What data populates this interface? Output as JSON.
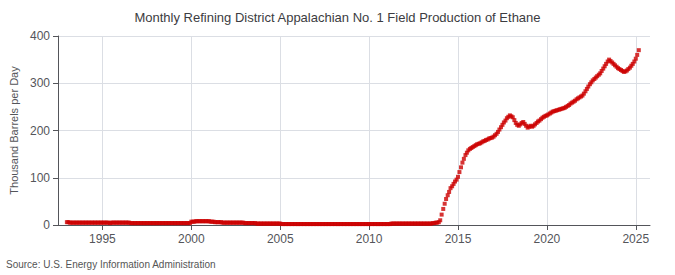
{
  "chart_data": {
    "type": "scatter",
    "title": "Monthly Refining District Appalachian No. 1 Field Production of Ethane",
    "ylabel": "Thousand Barrels per Day",
    "annotation": "Source: U.S. Energy Information Administration",
    "color": "#cc0000",
    "marker": "square",
    "grid": true,
    "xlim": [
      1992.5,
      2025.8
    ],
    "xticks": [
      1995,
      2000,
      2005,
      2010,
      2015,
      2020,
      2025
    ],
    "ylim": [
      0,
      400
    ],
    "yticks": [
      0,
      100,
      200,
      300,
      400
    ],
    "x": [
      1993.0,
      1993.08,
      1993.17,
      1993.25,
      1993.33,
      1993.42,
      1993.5,
      1993.58,
      1993.67,
      1993.75,
      1993.83,
      1993.92,
      1994.0,
      1994.08,
      1994.17,
      1994.25,
      1994.33,
      1994.42,
      1994.5,
      1994.58,
      1994.67,
      1994.75,
      1994.83,
      1994.92,
      1995.0,
      1995.08,
      1995.17,
      1995.25,
      1995.33,
      1995.42,
      1995.5,
      1995.58,
      1995.67,
      1995.75,
      1995.83,
      1995.92,
      1996.0,
      1996.08,
      1996.17,
      1996.25,
      1996.33,
      1996.42,
      1996.5,
      1996.58,
      1996.67,
      1996.75,
      1996.83,
      1996.92,
      1997.0,
      1997.08,
      1997.17,
      1997.25,
      1997.33,
      1997.42,
      1997.5,
      1997.58,
      1997.67,
      1997.75,
      1997.83,
      1997.92,
      1998.0,
      1998.08,
      1998.17,
      1998.25,
      1998.33,
      1998.42,
      1998.5,
      1998.58,
      1998.67,
      1998.75,
      1998.83,
      1998.92,
      1999.0,
      1999.08,
      1999.17,
      1999.25,
      1999.33,
      1999.42,
      1999.5,
      1999.58,
      1999.67,
      1999.75,
      1999.83,
      1999.92,
      2000.0,
      2000.08,
      2000.17,
      2000.25,
      2000.33,
      2000.42,
      2000.5,
      2000.58,
      2000.67,
      2000.75,
      2000.83,
      2000.92,
      2001.0,
      2001.08,
      2001.17,
      2001.25,
      2001.33,
      2001.42,
      2001.5,
      2001.58,
      2001.67,
      2001.75,
      2001.83,
      2001.92,
      2002.0,
      2002.08,
      2002.17,
      2002.25,
      2002.33,
      2002.42,
      2002.5,
      2002.58,
      2002.67,
      2002.75,
      2002.83,
      2002.92,
      2003.0,
      2003.08,
      2003.17,
      2003.25,
      2003.33,
      2003.42,
      2003.5,
      2003.58,
      2003.67,
      2003.75,
      2003.83,
      2003.92,
      2004.0,
      2004.08,
      2004.17,
      2004.25,
      2004.33,
      2004.42,
      2004.5,
      2004.58,
      2004.67,
      2004.75,
      2004.83,
      2004.92,
      2005.0,
      2005.08,
      2005.17,
      2005.25,
      2005.33,
      2005.42,
      2005.5,
      2005.58,
      2005.67,
      2005.75,
      2005.83,
      2005.92,
      2006.0,
      2006.08,
      2006.17,
      2006.25,
      2006.33,
      2006.42,
      2006.5,
      2006.58,
      2006.67,
      2006.75,
      2006.83,
      2006.92,
      2007.0,
      2007.08,
      2007.17,
      2007.25,
      2007.33,
      2007.42,
      2007.5,
      2007.58,
      2007.67,
      2007.75,
      2007.83,
      2007.92,
      2008.0,
      2008.08,
      2008.17,
      2008.25,
      2008.33,
      2008.42,
      2008.5,
      2008.58,
      2008.67,
      2008.75,
      2008.83,
      2008.92,
      2009.0,
      2009.08,
      2009.17,
      2009.25,
      2009.33,
      2009.42,
      2009.5,
      2009.58,
      2009.67,
      2009.75,
      2009.83,
      2009.92,
      2010.0,
      2010.08,
      2010.17,
      2010.25,
      2010.33,
      2010.42,
      2010.5,
      2010.58,
      2010.67,
      2010.75,
      2010.83,
      2010.92,
      2011.0,
      2011.08,
      2011.17,
      2011.25,
      2011.33,
      2011.42,
      2011.5,
      2011.58,
      2011.67,
      2011.75,
      2011.83,
      2011.92,
      2012.0,
      2012.08,
      2012.17,
      2012.25,
      2012.33,
      2012.42,
      2012.5,
      2012.58,
      2012.67,
      2012.75,
      2012.83,
      2012.92,
      2013.0,
      2013.08,
      2013.17,
      2013.25,
      2013.33,
      2013.42,
      2013.5,
      2013.58,
      2013.67,
      2013.75,
      2013.83,
      2013.92,
      2014.0,
      2014.08,
      2014.17,
      2014.25,
      2014.33,
      2014.42,
      2014.5,
      2014.58,
      2014.67,
      2014.75,
      2014.83,
      2014.92,
      2015.0,
      2015.08,
      2015.17,
      2015.25,
      2015.33,
      2015.42,
      2015.5,
      2015.58,
      2015.67,
      2015.75,
      2015.83,
      2015.92,
      2016.0,
      2016.08,
      2016.17,
      2016.25,
      2016.33,
      2016.42,
      2016.5,
      2016.58,
      2016.67,
      2016.75,
      2016.83,
      2016.92,
      2017.0,
      2017.08,
      2017.17,
      2017.25,
      2017.33,
      2017.42,
      2017.5,
      2017.58,
      2017.67,
      2017.75,
      2017.83,
      2017.92,
      2018.0,
      2018.08,
      2018.17,
      2018.25,
      2018.33,
      2018.42,
      2018.5,
      2018.58,
      2018.67,
      2018.75,
      2018.83,
      2018.92,
      2019.0,
      2019.08,
      2019.17,
      2019.25,
      2019.33,
      2019.42,
      2019.5,
      2019.58,
      2019.67,
      2019.75,
      2019.83,
      2019.92,
      2020.0,
      2020.08,
      2020.17,
      2020.25,
      2020.33,
      2020.42,
      2020.5,
      2020.58,
      2020.67,
      2020.75,
      2020.83,
      2020.92,
      2021.0,
      2021.08,
      2021.17,
      2021.25,
      2021.33,
      2021.42,
      2021.5,
      2021.58,
      2021.67,
      2021.75,
      2021.83,
      2021.92,
      2022.0,
      2022.08,
      2022.17,
      2022.25,
      2022.33,
      2022.42,
      2022.5,
      2022.58,
      2022.67,
      2022.75,
      2022.83,
      2022.92,
      2023.0,
      2023.08,
      2023.17,
      2023.25,
      2023.33,
      2023.42,
      2023.5,
      2023.58,
      2023.67,
      2023.75,
      2023.83,
      2023.92,
      2024.0,
      2024.08,
      2024.17,
      2024.25,
      2024.33,
      2024.42,
      2024.5,
      2024.58,
      2024.67,
      2024.75,
      2024.83,
      2024.92,
      2025.0,
      2025.08,
      2025.17
    ],
    "values": [
      6,
      6,
      5,
      5,
      5,
      5,
      5,
      5,
      5,
      5,
      5,
      5,
      5,
      5,
      5,
      5,
      5,
      5,
      5,
      5,
      5,
      5,
      5,
      5,
      5,
      5,
      5,
      5,
      5,
      4,
      5,
      5,
      5,
      5,
      5,
      5,
      5,
      5,
      5,
      5,
      5,
      5,
      5,
      4,
      4,
      4,
      4,
      4,
      4,
      4,
      4,
      4,
      4,
      4,
      4,
      4,
      4,
      4,
      4,
      4,
      4,
      4,
      4,
      4,
      4,
      4,
      4,
      4,
      4,
      4,
      4,
      4,
      4,
      4,
      4,
      4,
      4,
      4,
      4,
      4,
      4,
      4,
      4,
      4,
      7,
      7,
      7,
      8,
      8,
      8,
      8,
      8,
      8,
      8,
      8,
      8,
      8,
      7,
      7,
      7,
      6,
      6,
      6,
      6,
      6,
      5,
      5,
      5,
      5,
      5,
      5,
      5,
      5,
      5,
      5,
      5,
      5,
      5,
      5,
      5,
      4,
      4,
      4,
      4,
      4,
      4,
      4,
      4,
      3,
      3,
      3,
      3,
      3,
      3,
      3,
      3,
      3,
      3,
      3,
      3,
      3,
      3,
      3,
      3,
      3,
      2,
      2,
      2,
      2,
      2,
      2,
      2,
      2,
      2,
      2,
      2,
      2,
      2,
      2,
      2,
      2,
      2,
      2,
      2,
      2,
      2,
      2,
      2,
      2,
      2,
      2,
      2,
      2,
      2,
      2,
      2,
      2,
      2,
      2,
      2,
      2,
      2,
      2,
      2,
      2,
      2,
      2,
      2,
      2,
      2,
      2,
      2,
      2,
      2,
      2,
      2,
      2,
      2,
      2,
      2,
      2,
      2,
      2,
      2,
      2,
      2,
      2,
      2,
      2,
      2,
      2,
      2,
      2,
      2,
      2,
      2,
      2,
      2,
      2,
      3,
      3,
      3,
      3,
      3,
      3,
      3,
      3,
      3,
      3,
      3,
      3,
      3,
      3,
      3,
      3,
      3,
      3,
      3,
      3,
      3,
      3,
      3,
      3,
      3,
      3,
      3,
      3,
      4,
      4,
      5,
      5,
      6,
      10,
      22,
      34,
      45,
      55,
      63,
      70,
      78,
      82,
      87,
      92,
      96,
      102,
      112,
      122,
      132,
      140,
      148,
      153,
      158,
      161,
      163,
      165,
      167,
      169,
      171,
      172,
      173,
      175,
      177,
      178,
      180,
      181,
      183,
      184,
      185,
      187,
      190,
      193,
      197,
      202,
      207,
      212,
      217,
      221,
      226,
      229,
      232,
      230,
      228,
      222,
      216,
      212,
      210,
      213,
      216,
      218,
      214,
      210,
      206,
      208,
      210,
      208,
      210,
      213,
      216,
      219,
      221,
      224,
      227,
      229,
      231,
      232,
      234,
      236,
      238,
      240,
      241,
      242,
      243,
      244,
      245,
      246,
      247,
      248,
      250,
      252,
      254,
      257,
      259,
      261,
      263,
      266,
      268,
      270,
      272,
      274,
      278,
      283,
      288,
      293,
      298,
      302,
      306,
      309,
      312,
      315,
      318,
      321,
      326,
      331,
      336,
      341,
      346,
      350,
      347,
      344,
      341,
      338,
      335,
      332,
      330,
      328,
      326,
      324,
      325,
      327,
      330,
      333,
      337,
      341,
      346,
      352,
      360,
      370
    ]
  }
}
